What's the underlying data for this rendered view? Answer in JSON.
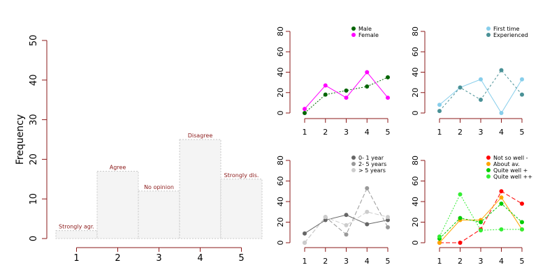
{
  "colors": {
    "axis": "#8b1a1a",
    "text": "#000000",
    "bar_label": "#8b1a1a",
    "bar_fill": "#f4f4f4",
    "bar_stroke": "#c8c8c8"
  },
  "chart_data": [
    {
      "type": "bar",
      "title": "",
      "xlabel": "",
      "ylabel": "Frequency",
      "categories": [
        "1",
        "2",
        "3",
        "4",
        "5"
      ],
      "bar_labels": [
        "Strongly agr.",
        "Agree",
        "No opinion",
        "Disagree",
        "Strongly dis."
      ],
      "values": [
        2,
        17,
        12,
        25,
        15
      ],
      "ylim": [
        0,
        50
      ],
      "yticks": [
        0,
        10,
        20,
        30,
        40,
        50
      ],
      "grid": false
    },
    {
      "type": "line",
      "x": [
        1,
        2,
        3,
        4,
        5
      ],
      "ylim": [
        0,
        80
      ],
      "yticks": [
        0,
        20,
        40,
        60,
        80
      ],
      "legend_position": "top-right",
      "series": [
        {
          "name": "Male",
          "values": [
            0,
            18,
            22,
            26,
            35
          ],
          "color": "#006400",
          "dash": "2,2"
        },
        {
          "name": "Female",
          "values": [
            4,
            27,
            15,
            40,
            15
          ],
          "color": "#ff00ff",
          "dash": ""
        }
      ]
    },
    {
      "type": "line",
      "x": [
        1,
        2,
        3,
        4,
        5
      ],
      "ylim": [
        0,
        80
      ],
      "yticks": [
        0,
        20,
        40,
        60,
        80
      ],
      "legend_position": "top-right",
      "series": [
        {
          "name": "First time",
          "values": [
            8,
            25,
            33,
            0,
            33
          ],
          "color": "#87ceeb",
          "dash": ""
        },
        {
          "name": "Experienced",
          "values": [
            2,
            25,
            13,
            42,
            18
          ],
          "color": "#4a9196",
          "dash": "3,3"
        }
      ]
    },
    {
      "type": "line",
      "x": [
        1,
        2,
        3,
        4,
        5
      ],
      "ylim": [
        0,
        80
      ],
      "yticks": [
        0,
        20,
        40,
        60,
        80
      ],
      "legend_position": "top-right",
      "series": [
        {
          "name": "0- 1 year",
          "values": [
            9,
            22,
            27,
            18,
            22
          ],
          "color": "#666666",
          "dash": ""
        },
        {
          "name": "2- 5 years",
          "values": [
            0,
            25,
            8,
            53,
            15
          ],
          "color": "#999999",
          "dash": "6,3"
        },
        {
          "name": "> 5 years",
          "values": [
            0,
            25,
            17,
            30,
            25
          ],
          "color": "#cccccc",
          "dash": "6,3"
        }
      ]
    },
    {
      "type": "line",
      "x": [
        1,
        2,
        3,
        4,
        5
      ],
      "ylim": [
        0,
        80
      ],
      "yticks": [
        0,
        20,
        40,
        60,
        80
      ],
      "legend_position": "top-right",
      "series": [
        {
          "name": "Not so well -",
          "values": [
            0,
            0,
            13,
            50,
            38
          ],
          "color": "#ff0000",
          "dash": "6,3"
        },
        {
          "name": "About av.",
          "values": [
            0,
            22,
            22,
            44,
            13
          ],
          "color": "#ffa500",
          "dash": ""
        },
        {
          "name": "Quite well +",
          "values": [
            4,
            24,
            20,
            38,
            20
          ],
          "color": "#00cc00",
          "dash": "3,2"
        },
        {
          "name": "Quite well ++",
          "values": [
            6,
            47,
            12,
            13,
            13
          ],
          "color": "#33ee33",
          "dash": "2,2"
        }
      ]
    }
  ]
}
